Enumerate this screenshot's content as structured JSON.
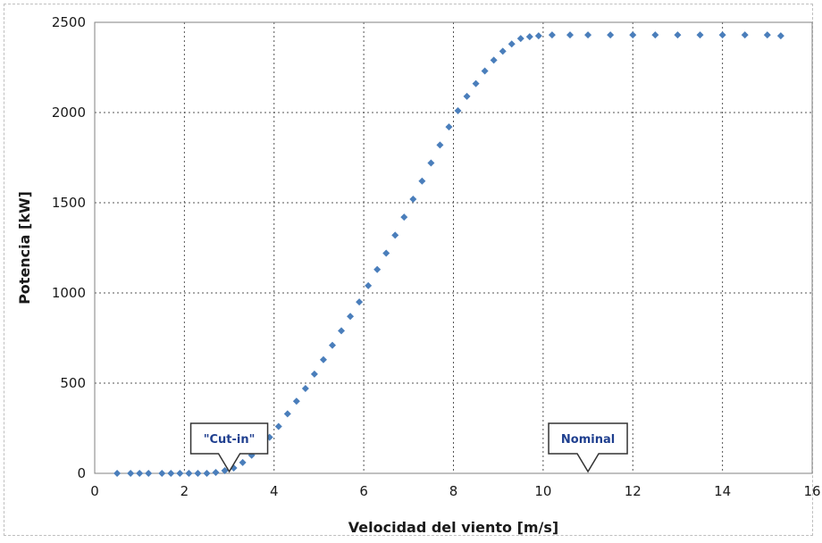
{
  "chart_data": {
    "type": "scatter",
    "xlabel": "Velocidad del viento [m/s]",
    "ylabel": "Potencia [kW]",
    "xlim": [
      0,
      16
    ],
    "ylim": [
      0,
      2500
    ],
    "x_ticks": [
      "0",
      "2",
      "4",
      "6",
      "8",
      "10",
      "12",
      "14",
      "16"
    ],
    "y_ticks": [
      "0",
      "500",
      "1000",
      "1500",
      "2000",
      "2500"
    ],
    "grid": true,
    "legend": "none",
    "marker_color": "#4a7ebb",
    "annotations": [
      {
        "text": "\"Cut-in\"",
        "x": 3.0,
        "y": 0
      },
      {
        "text": "Nominal",
        "x": 11.0,
        "y": 0
      }
    ],
    "series": [
      {
        "x": [
          0.5,
          0.8,
          1.0,
          1.2,
          1.5,
          1.7,
          1.9,
          2.1,
          2.3,
          2.5,
          2.7,
          2.9,
          3.1,
          3.3,
          3.5,
          3.7,
          3.9,
          4.1,
          4.3,
          4.5,
          4.7,
          4.9,
          5.1,
          5.3,
          5.5,
          5.7,
          5.9,
          6.1,
          6.3,
          6.5,
          6.7,
          6.9,
          7.1,
          7.3,
          7.5,
          7.7,
          7.9,
          8.1,
          8.3,
          8.5,
          8.7,
          8.9,
          9.1,
          9.3,
          9.5,
          9.7,
          9.9,
          10.2,
          10.6,
          11.0,
          11.5,
          12.0,
          12.5,
          13.0,
          13.5,
          14.0,
          14.5,
          15.0,
          15.3
        ],
        "y": [
          0,
          0,
          0,
          0,
          0,
          0,
          0,
          0,
          0,
          0,
          5,
          15,
          30,
          60,
          100,
          150,
          200,
          260,
          330,
          400,
          470,
          550,
          630,
          710,
          790,
          870,
          950,
          1040,
          1130,
          1220,
          1320,
          1420,
          1520,
          1620,
          1720,
          1820,
          1920,
          2010,
          2090,
          2160,
          2230,
          2290,
          2340,
          2380,
          2410,
          2420,
          2425,
          2430,
          2430,
          2430,
          2430,
          2430,
          2430,
          2430,
          2430,
          2430,
          2430,
          2430,
          2425
        ]
      }
    ]
  }
}
